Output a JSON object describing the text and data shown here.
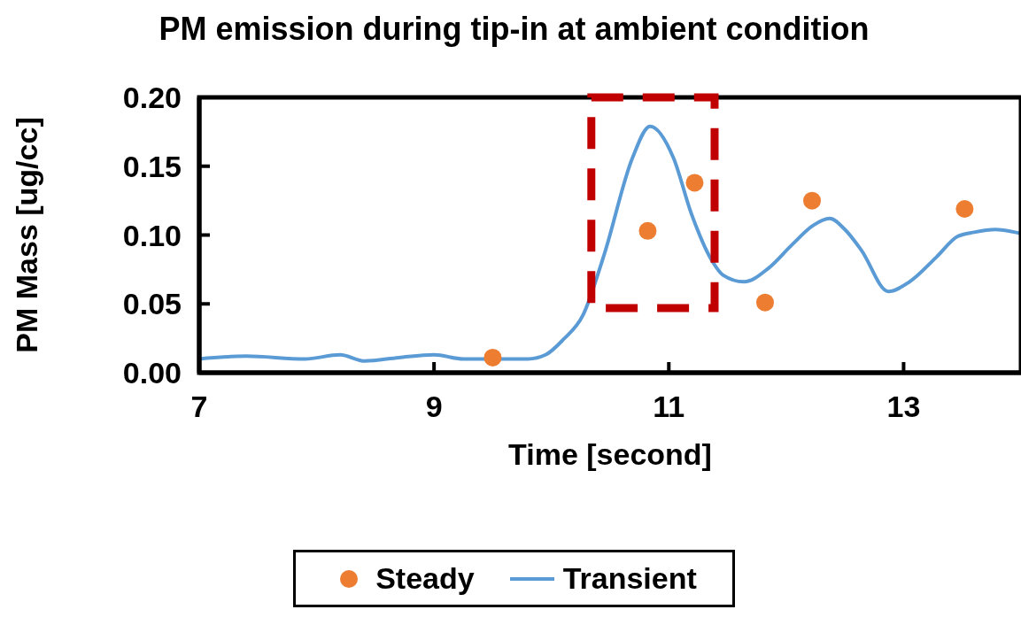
{
  "chart_data": {
    "type": "line",
    "title": "PM emission during tip-in at ambient condition",
    "xlabel": "Time [second]",
    "ylabel": "PM Mass [ug/cc]",
    "xlim": [
      7,
      14
    ],
    "xticks": [
      7,
      9,
      11,
      13
    ],
    "ylim": [
      0,
      0.2
    ],
    "yticks": [
      {
        "value": 0,
        "label": "0.00"
      },
      {
        "value": 0.05,
        "label": "0.05"
      },
      {
        "value": 0.1,
        "label": "0.10"
      },
      {
        "value": 0.15,
        "label": "0.15"
      },
      {
        "value": 0.2,
        "label": "0.20"
      }
    ],
    "grid": false,
    "legend": "bottom",
    "series": [
      {
        "name": "Steady",
        "type": "scatter",
        "marker": "circle",
        "color": "#ed7d31",
        "x": [
          9.5,
          10.82,
          11.22,
          11.82,
          12.22,
          13.52
        ],
        "values": [
          0.011,
          0.103,
          0.138,
          0.051,
          0.125,
          0.119
        ]
      },
      {
        "name": "Transient",
        "type": "line",
        "marker": "none",
        "color": "#5b9bd5",
        "x": [
          7.0,
          7.4,
          7.9,
          8.2,
          8.41,
          8.7,
          9.0,
          9.25,
          9.6,
          9.8,
          9.95,
          10.1,
          10.27,
          10.45,
          10.69,
          10.84,
          11.04,
          11.19,
          11.37,
          11.46,
          11.64,
          11.85,
          12.05,
          12.23,
          12.37,
          12.5,
          12.64,
          12.87,
          13.05,
          13.28,
          13.46,
          13.6,
          13.78,
          13.95,
          14.0
        ],
        "values": [
          0.01,
          0.012,
          0.01,
          0.013,
          0.0085,
          0.011,
          0.013,
          0.01,
          0.01,
          0.01,
          0.013,
          0.024,
          0.042,
          0.086,
          0.156,
          0.179,
          0.156,
          0.116,
          0.081,
          0.071,
          0.066,
          0.076,
          0.093,
          0.107,
          0.112,
          0.104,
          0.089,
          0.059,
          0.066,
          0.084,
          0.099,
          0.102,
          0.104,
          0.102,
          0.101
        ]
      }
    ]
  }
}
